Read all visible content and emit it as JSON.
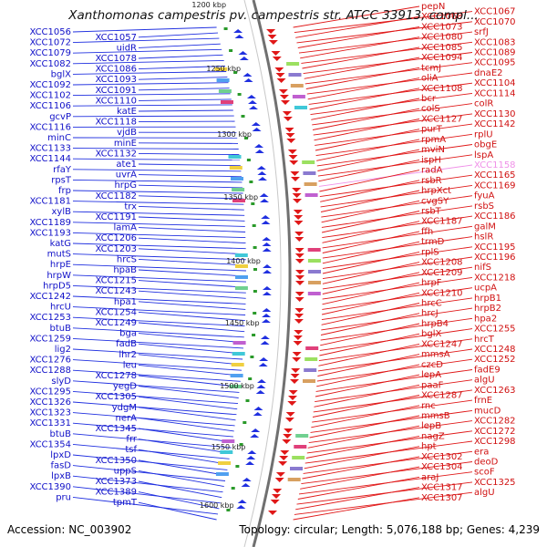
{
  "title": "Xanthomonas campestris pv. campestris str. ATCC 33913, compl...",
  "accession": "Accession: NC_003902",
  "summary": "Topology: circular; Length: 5,076,188 bp; Genes: 4,239",
  "scale_labels": [
    "1200 kbp",
    "1250 kbp",
    "1300 kbp",
    "1350 kbp",
    "1400 kbp",
    "1450 kbp",
    "1500 kbp",
    "1550 kbp",
    "1600 kbp"
  ],
  "left_genes": [
    "XCC1056",
    "XCC1057",
    "XCC1072",
    "uidR",
    "XCC1079",
    "XCC1078",
    "XCC1082",
    "XCC1086",
    "bglX",
    "XCC1093",
    "XCC1092",
    "XCC1091",
    "XCC1102",
    "XCC1110",
    "XCC1106",
    "katE",
    "gcvP",
    "XCC1118",
    "XCC1116",
    "vjdB",
    "minC",
    "minE",
    "XCC1133",
    "XCC1132",
    "XCC1144",
    "ate1",
    "rfaY",
    "uvrA",
    "rpsT",
    "hrpG",
    "frp",
    "XCC1182",
    "XCC1181",
    "trx",
    "xylB",
    "XCC1191",
    "XCC1189",
    "lamA",
    "XCC1193",
    "XCC1206",
    "katG",
    "XCC1203",
    "mutS",
    "hrcS",
    "hrpE",
    "hpaB",
    "hrpW",
    "XCC1215",
    "hrpD5",
    "XCC1243",
    "XCC1242",
    "hpa1",
    "hrcU",
    "XCC1254",
    "XCC1253",
    "XCC1249",
    "btuB",
    "bga",
    "XCC1259",
    "fadB",
    "lig2",
    "lhr2",
    "XCC1276",
    "leu",
    "XCC1288",
    "XCC1278",
    "slyD",
    "yegD",
    "XCC1295",
    "XCC1305",
    "XCC1326",
    "ydgM",
    "XCC1323",
    "nerA",
    "XCC1331",
    "XCC1345",
    "btuB",
    "frr",
    "XCC1354",
    "tsf",
    "lpxD",
    "XCC1350",
    "fasD",
    "uppS",
    "lpxB",
    "XCC1373",
    "XCC1390",
    "XCC1389",
    "pru",
    "tpmT"
  ],
  "right_genes": [
    "pepN",
    "XCC1067",
    "XCC1068",
    "XCC1070",
    "XCC1073",
    "srfJ",
    "XCC1080",
    "XCC1083",
    "XCC1085",
    "XCC1089",
    "XCC1094",
    "XCC1095",
    "tcmJ",
    "dnaE2",
    "oliA",
    "XCC1104",
    "XCC1108",
    "XCC1114",
    "bcr",
    "colR",
    "colS",
    "XCC1130",
    "XCC1127",
    "XCC1142",
    "purT",
    "rplU",
    "rpmA",
    "obgE",
    "mviN",
    "lspA",
    "ispH",
    "XCC1158",
    "radA",
    "XCC1165",
    "rsbR",
    "XCC1169",
    "hrpXct",
    "fyuA",
    "cvgSY",
    "rsbS",
    "rsbT",
    "XCC1186",
    "XCC1187",
    "galM",
    "ffh",
    "hslR",
    "trmD",
    "XCC1195",
    "rplS",
    "XCC1196",
    "XCC1208",
    "nifS",
    "XCC1209",
    "XCC1218",
    "hrpF",
    "ucpA",
    "XCC1210",
    "hrpB1",
    "hrcC",
    "hrpB2",
    "hrcJ",
    "hpa2",
    "hrpB4",
    "XCC1255",
    "bglX",
    "hrcT",
    "XCC1247",
    "XCC1248",
    "mmsA",
    "XCC1252",
    "czcD",
    "fadE9",
    "lepA",
    "algU",
    "paaF",
    "XCC1263",
    "XCC1287",
    "frnE",
    "rnc",
    "mucD",
    "mmsB",
    "XCC1282",
    "lepB",
    "XCC1272",
    "nagZ",
    "XCC1298",
    "hpt",
    "era",
    "XCC1302",
    "deoD",
    "XCC1304",
    "scoF",
    "araJ",
    "XCC1325",
    "XCC1317",
    "algU",
    "XCC1307"
  ],
  "colors": {
    "forward_strand": "#2030e0",
    "reverse_strand": "#e01818",
    "left_label": "#1010c8",
    "right_label": "#d01010",
    "highlight_label": "#f090e8",
    "backbone": "#707070",
    "tick": "#2a9a2a"
  }
}
